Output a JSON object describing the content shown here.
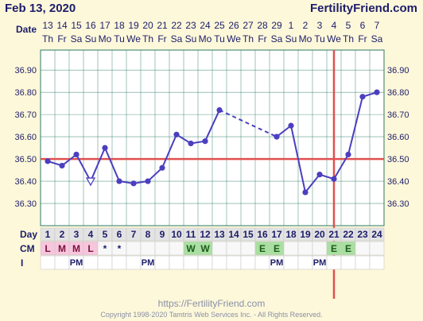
{
  "header": {
    "title_date": "Feb 13, 2020",
    "site_name": "FertilityFriend.com",
    "date_row_label": "Date",
    "day_row_label": "Day",
    "cm_row_label": "CM",
    "intercourse_row_label": "I"
  },
  "footer": {
    "url": "https://FertilityFriend.com",
    "copyright": "Copyright 1998-2020 Tamtris Web Services Inc. - All Rights Reserved."
  },
  "colors": {
    "background": "#fdf8d9",
    "plot_bg": "#ffffff",
    "grid": "#2a7a6a",
    "temp_line": "#4b3fbf",
    "coverline": "#e05050",
    "cm_menstrual": "#f7c6dc",
    "cm_egg_white": "#a9e0a0",
    "text": "#1d1d6b"
  },
  "chart_data": {
    "type": "line",
    "title": "",
    "xlabel": "Day",
    "ylabel": "",
    "x": [
      1,
      2,
      3,
      4,
      5,
      6,
      7,
      8,
      9,
      10,
      11,
      12,
      13,
      14,
      15,
      16,
      17,
      18,
      19,
      20,
      21,
      22,
      23,
      24
    ],
    "dates": [
      "13",
      "14",
      "15",
      "16",
      "17",
      "18",
      "19",
      "20",
      "21",
      "22",
      "23",
      "24",
      "25",
      "26",
      "27",
      "28",
      "29",
      "1",
      "2",
      "3",
      "4",
      "5",
      "6",
      "7"
    ],
    "weekdays": [
      "Th",
      "Fr",
      "Sa",
      "Su",
      "Mo",
      "Tu",
      "We",
      "Th",
      "Fr",
      "Sa",
      "Su",
      "Mo",
      "Tu",
      "We",
      "Th",
      "Fr",
      "Sa",
      "Su",
      "Mo",
      "Tu",
      "We",
      "Th",
      "Fr",
      "Sa"
    ],
    "temperatures": [
      36.49,
      36.47,
      36.52,
      36.4,
      36.55,
      36.4,
      36.39,
      36.4,
      36.46,
      36.61,
      36.57,
      36.58,
      36.72,
      null,
      null,
      null,
      36.6,
      36.65,
      36.35,
      36.43,
      36.41,
      36.52,
      36.78,
      36.8
    ],
    "discarded_day": 4,
    "ylim": [
      36.2,
      36.99
    ],
    "yticks": [
      "36.30",
      "36.40",
      "36.50",
      "36.60",
      "36.70",
      "36.80",
      "36.90"
    ],
    "coverline": 36.5,
    "ovulation_day": 21,
    "cervical_mucus": [
      "L",
      "M",
      "M",
      "L",
      "*",
      "*",
      "",
      "",
      "",
      "",
      "W",
      "W",
      "",
      "",
      "",
      "E",
      "E",
      "",
      "",
      "",
      "E",
      "E",
      "",
      ""
    ],
    "intercourse": [
      "",
      "",
      "PM",
      "",
      "",
      "",
      "",
      "PM",
      "",
      "",
      "",
      "",
      "",
      "",
      "",
      "",
      "PM",
      "",
      "",
      "PM",
      "",
      "",
      "",
      ""
    ],
    "grid": true
  }
}
